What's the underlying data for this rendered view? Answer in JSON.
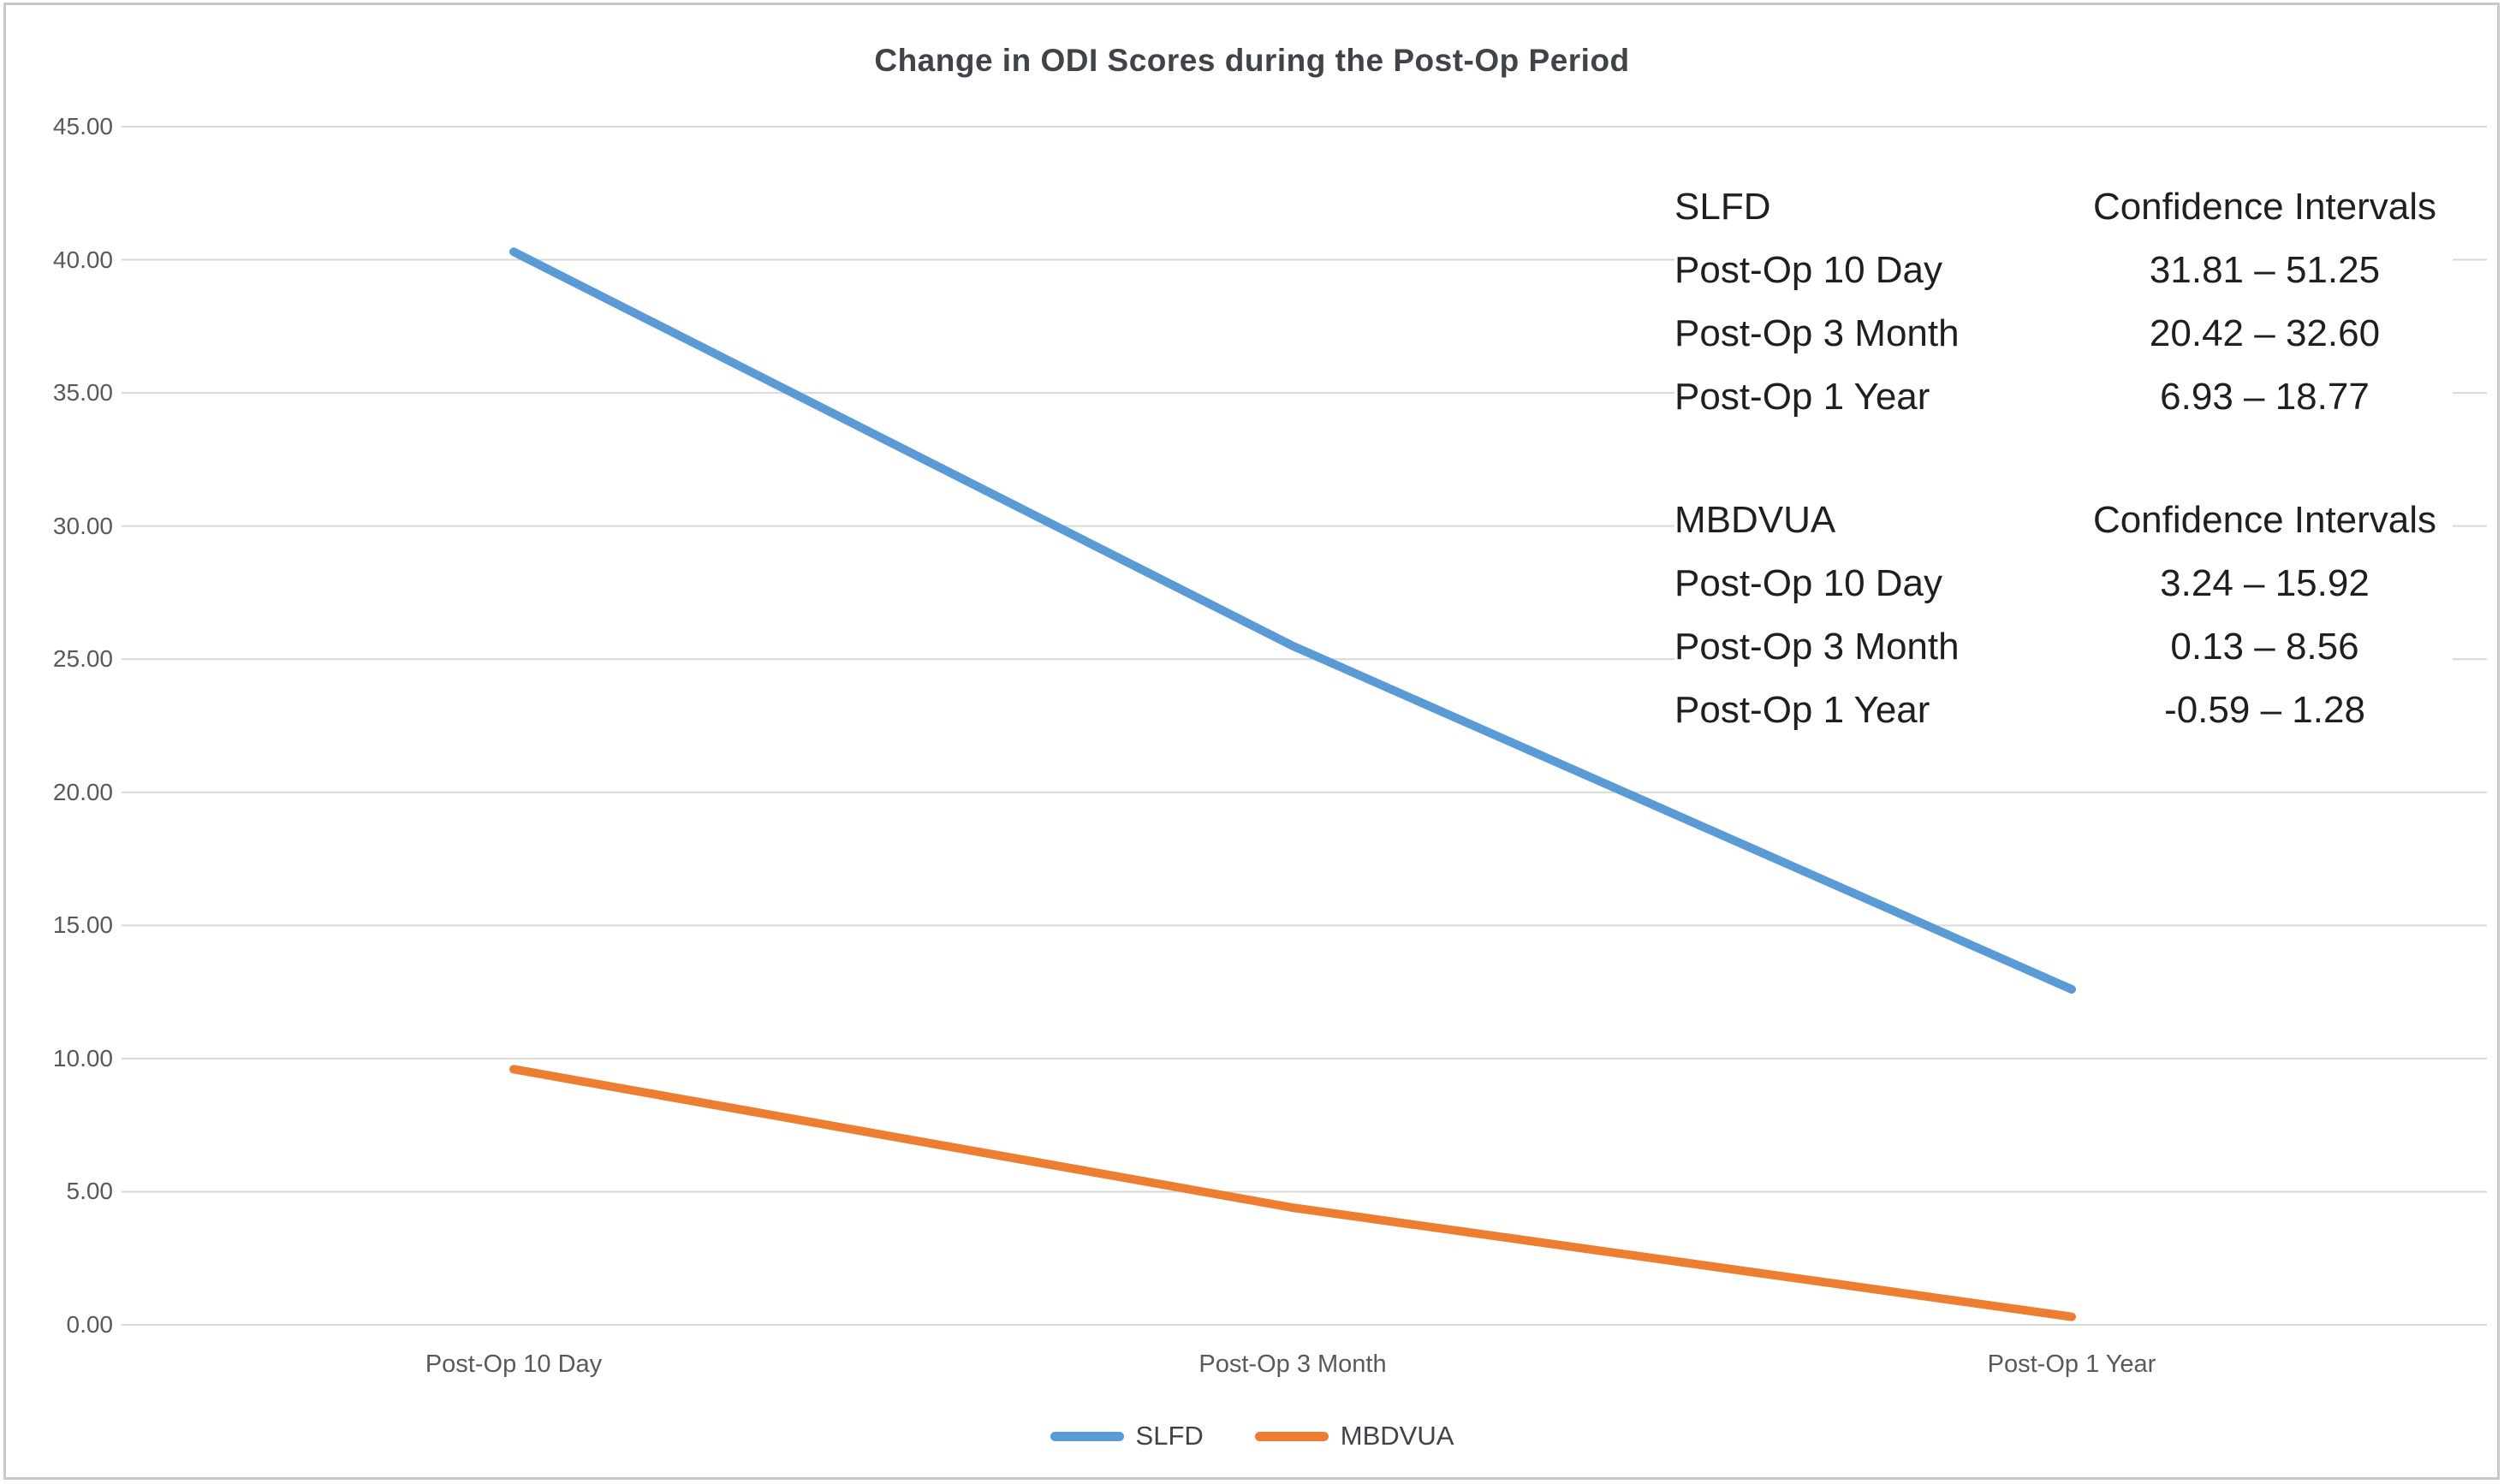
{
  "chart_data": {
    "type": "line",
    "title": "Change in ODI Scores during the Post-Op Period",
    "categories": [
      "Post-Op 10 Day",
      "Post-Op 3 Month",
      "Post-Op 1 Year"
    ],
    "series": [
      {
        "name": "SLFD",
        "color": "#5B9BD5",
        "values": [
          40.3,
          25.5,
          12.6
        ]
      },
      {
        "name": "MBDVUA",
        "color": "#ED7D31",
        "values": [
          9.6,
          4.4,
          0.3
        ]
      }
    ],
    "ylim": [
      0,
      45
    ],
    "ytick_labels": [
      "45.00",
      "40.00",
      "35.00",
      "30.00",
      "25.00",
      "20.00",
      "15.00",
      "10.00",
      "5.00",
      "0.00"
    ],
    "grid": "horizontal",
    "gridline_color": "#D9D9D9",
    "legend_position": "bottom"
  },
  "annotations": {
    "blocks": [
      {
        "group": "SLFD",
        "header": "Confidence Intervals",
        "rows": [
          {
            "label": "Post-Op 10 Day",
            "interval": "31.81 – 51.25"
          },
          {
            "label": "Post-Op 3 Month",
            "interval": "20.42  – 32.60"
          },
          {
            "label": "Post-Op 1 Year",
            "interval": "6.93 – 18.77"
          }
        ]
      },
      {
        "group": "MBDVUA",
        "header": "Confidence Intervals",
        "rows": [
          {
            "label": "Post-Op 10 Day",
            "interval": "3.24 – 15.92"
          },
          {
            "label": "Post-Op 3 Month",
            "interval": "0.13 – 8.56"
          },
          {
            "label": "Post-Op 1 Year",
            "interval": "-0.59 – 1.28"
          }
        ]
      }
    ]
  },
  "colors": {
    "frame_border": "#c9c9c9",
    "title_text": "#404347",
    "axis_text": "#595959",
    "annotation_text": "#1f1f1f"
  }
}
